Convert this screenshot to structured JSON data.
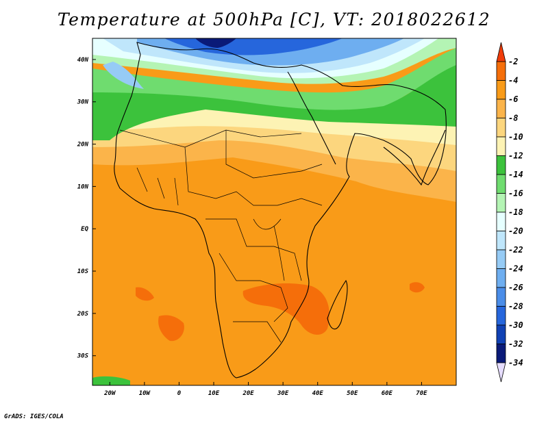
{
  "title": "Temperature at 500hPa [C], VT: 2018022612",
  "credit": "GrADS: IGES/COLA",
  "map": {
    "lon_range": [
      -25,
      80
    ],
    "lat_range": [
      -37,
      45
    ],
    "lon_ticks": [
      {
        "value": -20,
        "label": "20W"
      },
      {
        "value": -10,
        "label": "10W"
      },
      {
        "value": 0,
        "label": "0"
      },
      {
        "value": 10,
        "label": "10E"
      },
      {
        "value": 20,
        "label": "20E"
      },
      {
        "value": 30,
        "label": "30E"
      },
      {
        "value": 40,
        "label": "40E"
      },
      {
        "value": 50,
        "label": "50E"
      },
      {
        "value": 60,
        "label": "60E"
      },
      {
        "value": 70,
        "label": "70E"
      }
    ],
    "lat_ticks": [
      {
        "value": 40,
        "label": "40N"
      },
      {
        "value": 30,
        "label": "30N"
      },
      {
        "value": 20,
        "label": "20N"
      },
      {
        "value": 10,
        "label": "10N"
      },
      {
        "value": 0,
        "label": "EQ"
      },
      {
        "value": -10,
        "label": "10S"
      },
      {
        "value": -20,
        "label": "20S"
      },
      {
        "value": -30,
        "label": "30S"
      }
    ]
  },
  "colorbar": {
    "labels": [
      "-2",
      "-4",
      "-6",
      "-8",
      "-10",
      "-12",
      "-14",
      "-16",
      "-18",
      "-20",
      "-22",
      "-24",
      "-26",
      "-28",
      "-30",
      "-32",
      "-34"
    ],
    "colors": [
      "#f03c0a",
      "#f56e0a",
      "#f99b18",
      "#fbb44a",
      "#fcd67e",
      "#fdf3b4",
      "#3cc23c",
      "#6fdc6f",
      "#b4f4b4",
      "#e6ffff",
      "#bfe6fb",
      "#96cbf5",
      "#6eaef0",
      "#4a8de8",
      "#2666dc",
      "#1041b4",
      "#0a1a78",
      "#e6ddff"
    ]
  },
  "field": {
    "zones": [
      {
        "name": "extreme-cold",
        "color": "#0a1a78"
      },
      {
        "name": "very-cold",
        "color": "#2666dc"
      },
      {
        "name": "cold",
        "color": "#6eaef0"
      },
      {
        "name": "cool",
        "color": "#bfe6fb"
      },
      {
        "name": "pale",
        "color": "#e6ffff"
      },
      {
        "name": "mint",
        "color": "#b4f4b4"
      },
      {
        "name": "green",
        "color": "#3cc23c"
      },
      {
        "name": "cream",
        "color": "#fdf3b4"
      },
      {
        "name": "yellow",
        "color": "#fcd67e"
      },
      {
        "name": "light-orange",
        "color": "#fbb44a"
      },
      {
        "name": "orange",
        "color": "#f99b18"
      },
      {
        "name": "warm",
        "color": "#f56e0a"
      }
    ]
  }
}
